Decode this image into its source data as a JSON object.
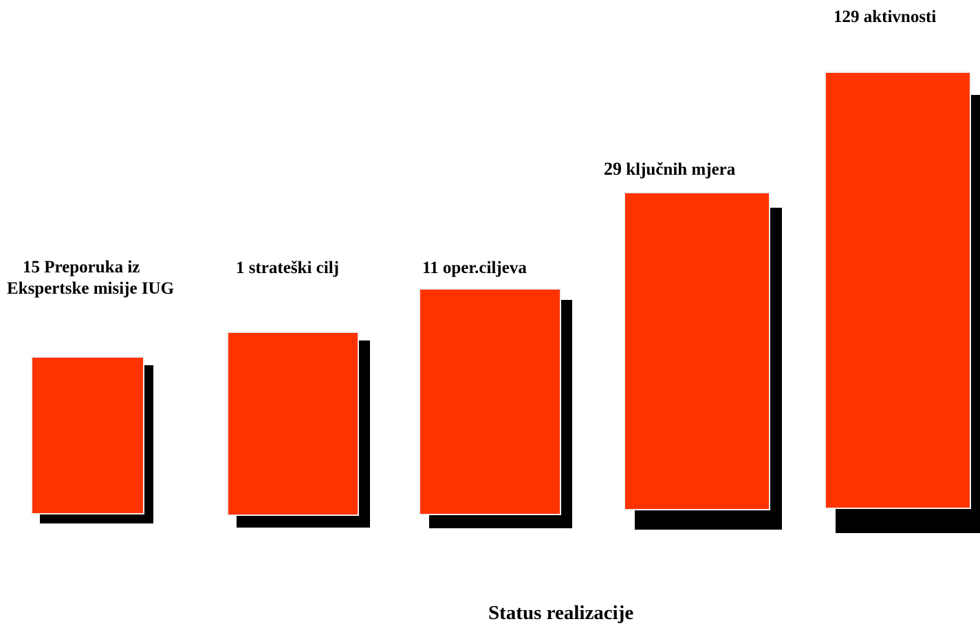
{
  "colors": {
    "block_fill": "#ff3300",
    "block_shadow": "#000000",
    "block_border": "#ededed",
    "text": "#000000"
  },
  "steps": [
    {
      "label_line1": "15 Preporuka iz",
      "label_line2": "Ekspertske misije IUG"
    },
    {
      "label_line1": "1 strateški cilj"
    },
    {
      "label_line1": "11 oper.ciljeva"
    },
    {
      "label_number": "29",
      "label_rest": " ključnih mjera"
    },
    {
      "label_line1": "129 aktivnosti"
    }
  ],
  "caption": "Status realizacije"
}
